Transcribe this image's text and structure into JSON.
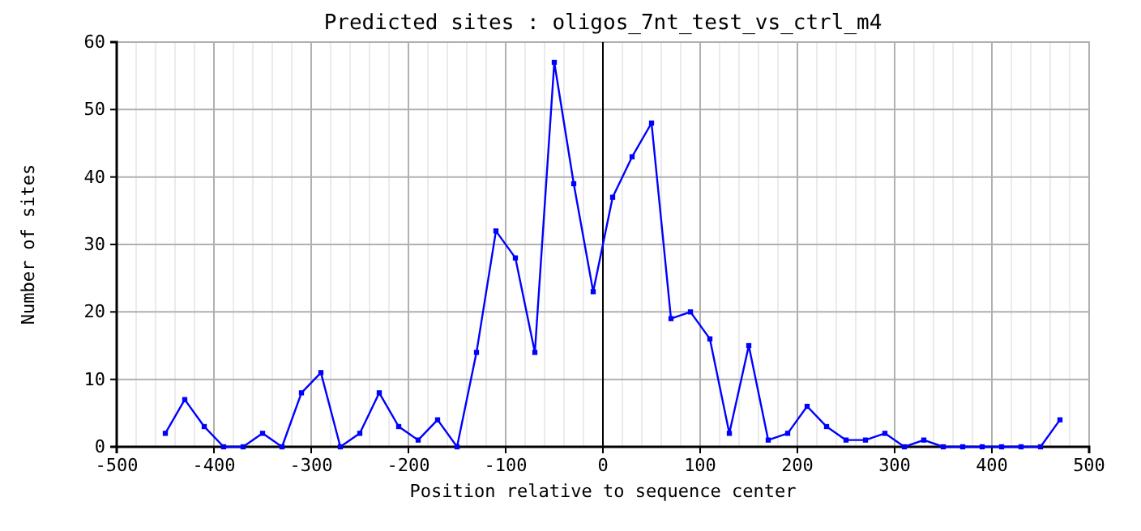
{
  "chart_data": {
    "type": "line",
    "title": "Predicted sites : oligos_7nt_test_vs_ctrl_m4",
    "xlabel": "Position relative to sequence center",
    "ylabel": "Number of sites",
    "x": [
      -450,
      -430,
      -410,
      -390,
      -370,
      -350,
      -330,
      -310,
      -290,
      -270,
      -250,
      -230,
      -210,
      -190,
      -170,
      -150,
      -130,
      -110,
      -90,
      -70,
      -50,
      -30,
      -10,
      10,
      30,
      50,
      70,
      90,
      110,
      130,
      150,
      170,
      190,
      210,
      230,
      250,
      270,
      290,
      310,
      330,
      350,
      370,
      390,
      410,
      430,
      450,
      470
    ],
    "series": [
      {
        "color": "#0000ff",
        "values": [
          2,
          7,
          3,
          0,
          0,
          2,
          0,
          8,
          11,
          0,
          2,
          8,
          3,
          1,
          4,
          0,
          14,
          32,
          28,
          14,
          57,
          39,
          23,
          37,
          43,
          48,
          19,
          20,
          16,
          2,
          15,
          1,
          2,
          6,
          3,
          1,
          1,
          2,
          0,
          1,
          0,
          0,
          0,
          0,
          0,
          0,
          4
        ]
      }
    ],
    "xlim": [
      -500,
      500
    ],
    "xticks": [
      -500,
      -400,
      -300,
      -200,
      -100,
      0,
      100,
      200,
      300,
      400,
      500
    ],
    "ylim": [
      0,
      60
    ],
    "yticks": [
      0,
      10,
      20,
      30,
      40,
      50,
      60
    ],
    "ref_lines": [
      {
        "axis": "x",
        "value": 0,
        "color": "#000000"
      }
    ],
    "grid": true,
    "marker": "square",
    "line_style": "solid"
  }
}
